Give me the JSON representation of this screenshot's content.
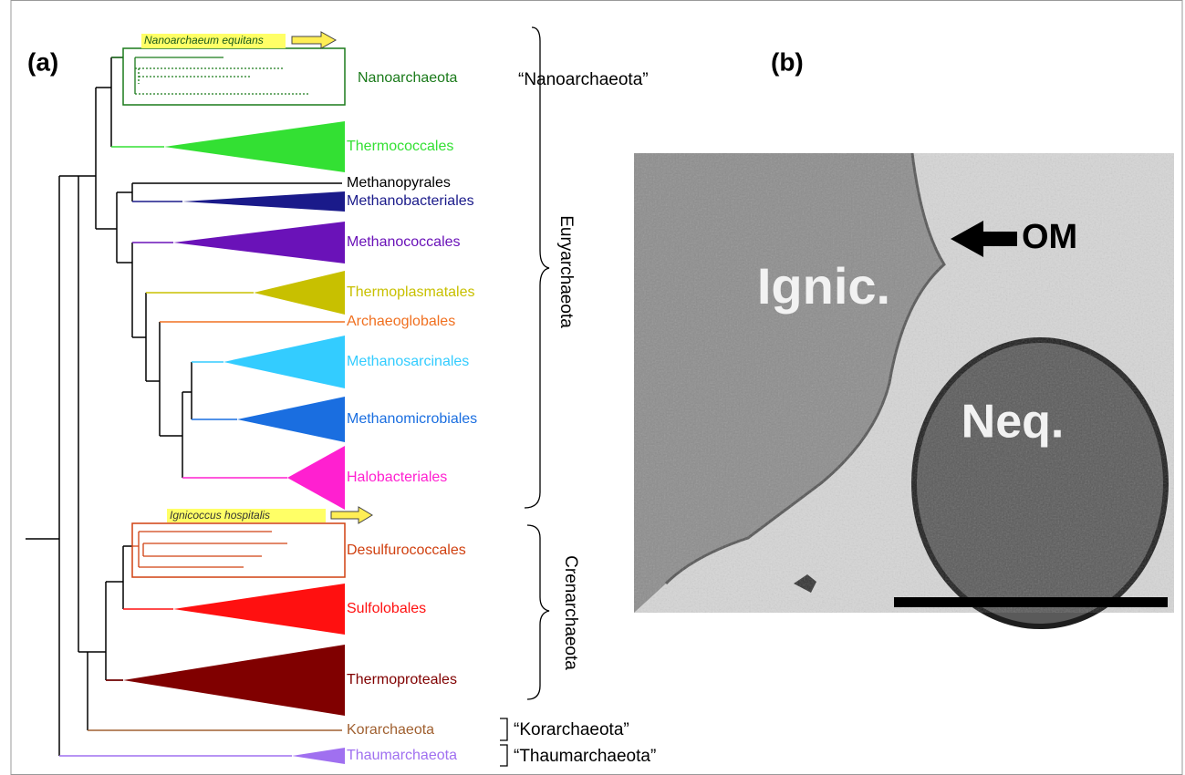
{
  "panel_a": {
    "label": "(a)",
    "highlights": [
      "Nanoarchaeum equitans",
      "Ignicoccus hospitalis"
    ],
    "taxa": [
      {
        "name": "Nanoarchaeota",
        "color": "#1a7a1a"
      },
      {
        "name": "Thermococcales",
        "color": "#33e033"
      },
      {
        "name": "Methanopyrales",
        "color": "#000000"
      },
      {
        "name": "Methanobacteriales",
        "color": "#1a1a8a"
      },
      {
        "name": "Methanococcales",
        "color": "#6a12b8"
      },
      {
        "name": "Thermoplasmatales",
        "color": "#c8c000"
      },
      {
        "name": "Archaeoglobales",
        "color": "#f07020"
      },
      {
        "name": "Methanosarcinales",
        "color": "#33ccff"
      },
      {
        "name": "Methanomicrobiales",
        "color": "#1a6ee0"
      },
      {
        "name": "Halobacteriales",
        "color": "#ff20d0"
      },
      {
        "name": "Desulfurococcales",
        "color": "#d04010"
      },
      {
        "name": "Sulfolobales",
        "color": "#ff1010"
      },
      {
        "name": "Thermoproteales",
        "color": "#800000"
      },
      {
        "name": "Korarchaeota",
        "color": "#a06030"
      },
      {
        "name": "Thaumarchaeota",
        "color": "#a070f0"
      }
    ],
    "groups": [
      "“Nanoarchaeota”",
      "Euryarchaeota",
      "Crenarchaeota",
      "“Korarchaeota”",
      "“Thaumarchaeota”"
    ]
  },
  "panel_b": {
    "label": "(b)",
    "cells": [
      "Ignic.",
      "Neq."
    ],
    "arrow_label": "OM"
  }
}
